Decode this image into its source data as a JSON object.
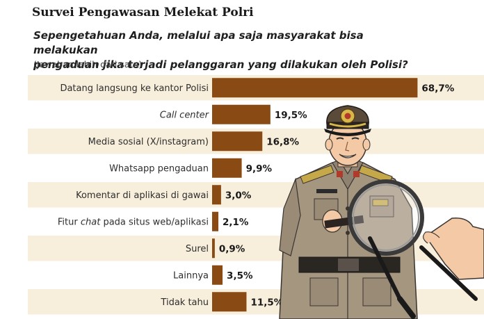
{
  "header": {
    "title": "Survei Pengawasan Melekat Polri",
    "question_line1": "Sepengetahuan Anda, melalui apa saja masyarakat bisa melakukan",
    "question_line2": "pengaduan jika terjadi pelanggaran yang dilakukan oleh Polisi?",
    "note": "(Jawaban lebih dari satu)"
  },
  "colors": {
    "bar": "#8a4a14",
    "stripe": "#f7eedb",
    "uniform": "#a59680",
    "uniform_dark": "#7d6f5d",
    "skin": "#f3c9a6"
  },
  "chart_data": {
    "type": "bar",
    "orientation": "horizontal",
    "title": "Survei Pengawasan Melekat Polri",
    "subtitle": "Sepengetahuan Anda, melalui apa saja masyarakat bisa melakukan pengaduan jika terjadi pelanggaran yang dilakukan oleh Polisi?",
    "note": "(Jawaban lebih dari satu)",
    "categories": [
      {
        "label": "Datang langsung ke kantor Polisi",
        "parts": [
          {
            "text": "Datang langsung ke kantor Polisi",
            "italic": false
          }
        ]
      },
      {
        "label": "Call center",
        "parts": [
          {
            "text": "Call center",
            "italic": true
          }
        ]
      },
      {
        "label": "Media sosial (X/instagram)",
        "parts": [
          {
            "text": "Media sosial (X/instagram)",
            "italic": false
          }
        ]
      },
      {
        "label": "Whatsapp pengaduan",
        "parts": [
          {
            "text": "Whatsapp pengaduan",
            "italic": false
          }
        ]
      },
      {
        "label": "Komentar di aplikasi di gawai",
        "parts": [
          {
            "text": "Komentar di aplikasi di gawai",
            "italic": false
          }
        ]
      },
      {
        "label": "Fitur chat pada situs web/aplikasi",
        "parts": [
          {
            "text": "Fitur ",
            "italic": false
          },
          {
            "text": "chat",
            "italic": true
          },
          {
            "text": " pada situs web/aplikasi",
            "italic": false
          }
        ]
      },
      {
        "label": "Surel",
        "parts": [
          {
            "text": "Surel",
            "italic": false
          }
        ]
      },
      {
        "label": "Lainnya",
        "parts": [
          {
            "text": "Lainnya",
            "italic": false
          }
        ]
      },
      {
        "label": "Tidak tahu",
        "parts": [
          {
            "text": "Tidak tahu",
            "italic": false
          }
        ]
      }
    ],
    "values": [
      68.7,
      19.5,
      16.8,
      9.9,
      3.0,
      2.1,
      0.9,
      3.5,
      11.5
    ],
    "value_labels": [
      "68,7%",
      "19,5%",
      "16,8%",
      "9,9%",
      "3,0%",
      "2,1%",
      "0,9%",
      "3,5%",
      "11,5%"
    ],
    "unit": "%",
    "xlim": [
      0,
      70
    ]
  }
}
